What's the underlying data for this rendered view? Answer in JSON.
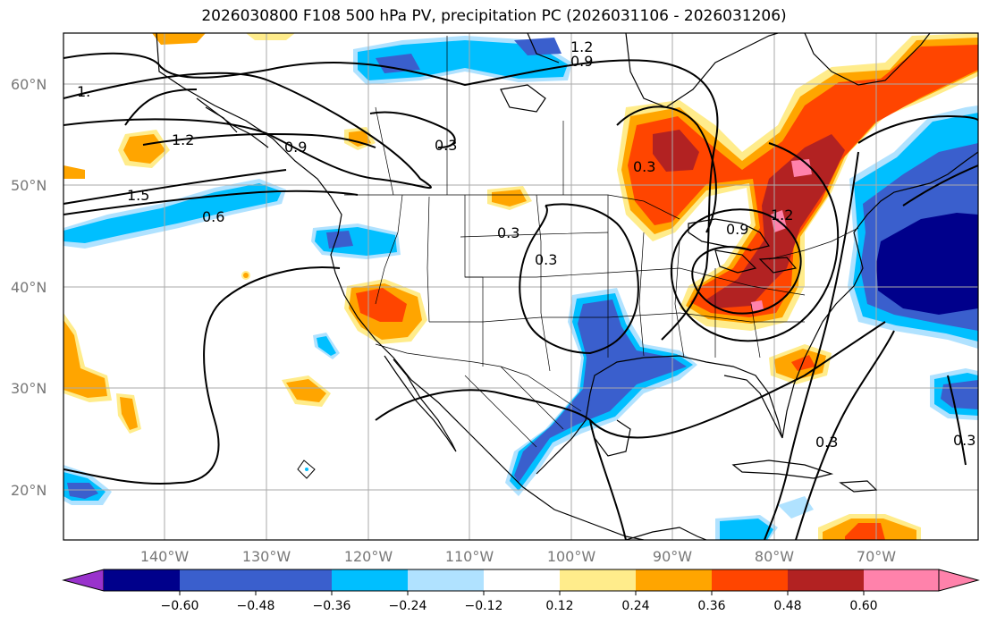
{
  "title": "2026030800 F108 500 hPa PV, precipitation PC (2026031106 - 2026031206)",
  "map": {
    "lat_ticks": [
      "20°N",
      "30°N",
      "40°N",
      "50°N",
      "60°N"
    ],
    "lon_ticks": [
      "140°W",
      "130°W",
      "120°W",
      "110°W",
      "100°W",
      "90°W",
      "80°W",
      "70°W"
    ],
    "contour_labels": [
      "1.2",
      "0.9",
      "1.2",
      "0.9",
      "0.3",
      "1.5",
      "0.6",
      "0.3",
      "0.3",
      "0.3",
      "1.2",
      "0.9",
      "0.3",
      "1.",
      "0.3"
    ]
  },
  "colorbar": {
    "labels": [
      "−0.60",
      "−0.48",
      "−0.36",
      "−0.24",
      "−0.12",
      "0.12",
      "0.24",
      "0.36",
      "0.48",
      "0.60"
    ],
    "colors": [
      "#9932cc",
      "#00008b",
      "#3a5fcd",
      "#00bfff",
      "#b0e2ff",
      "#ffffff",
      "#ffec8b",
      "#ffa500",
      "#ff4500",
      "#b22222",
      "#ff82ab",
      "#ff82ab"
    ]
  }
}
